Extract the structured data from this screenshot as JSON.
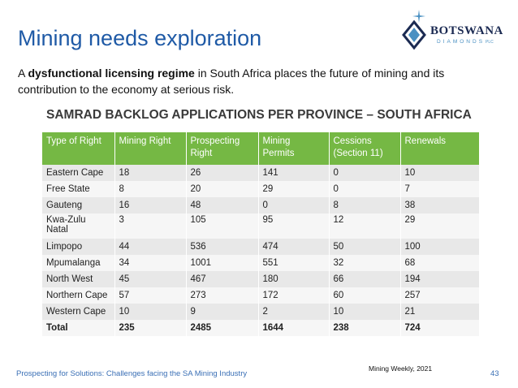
{
  "slide": {
    "title": "Mining needs exploration",
    "intro": {
      "prefix": "A ",
      "bold": "dysfunctional licensing regime",
      "suffix": " in South Africa places the future of mining and its contribution to the economy at serious risk."
    },
    "table_heading": "SAMRAD BACKLOG APPLICATIONS PER PROVINCE – SOUTH AFRICA",
    "source": "Mining Weekly, 2021",
    "footer": "Prospecting for Solutions: Challenges facing the SA Mining Industry",
    "page_number": "43"
  },
  "logo": {
    "name": "BOTSWANA",
    "sub": "DIAMONDS",
    "suffix": "PLC"
  },
  "table": {
    "headers": [
      "Type of Right",
      "Mining Right",
      "Prospecting Right",
      "Mining Permits",
      "Cessions (Section 11)",
      "Renewals"
    ],
    "rows": [
      [
        "Eastern Cape",
        "18",
        "26",
        "141",
        "0",
        "10"
      ],
      [
        "Free State",
        "8",
        "20",
        "29",
        "0",
        "7"
      ],
      [
        "Gauteng",
        "16",
        "48",
        "0",
        "8",
        "38"
      ],
      [
        "Kwa-Zulu Natal",
        "3",
        "105",
        "95",
        "12",
        "29"
      ],
      [
        "Limpopo",
        "44",
        "536",
        "474",
        "50",
        "100"
      ],
      [
        "Mpumalanga",
        "34",
        "1001",
        "551",
        "32",
        "68"
      ],
      [
        "North West",
        "45",
        "467",
        "180",
        "66",
        "194"
      ],
      [
        "Northern Cape",
        "57",
        "273",
        "172",
        "60",
        "257"
      ],
      [
        "Western Cape",
        "10",
        "9",
        "2",
        "10",
        "21"
      ],
      [
        "Total",
        "235",
        "2485",
        "1644",
        "238",
        "724"
      ]
    ]
  },
  "colors": {
    "title": "#1f5aa6",
    "header_bg": "#75b844",
    "logo_dark": "#1b2a52",
    "logo_light": "#4a90c2"
  }
}
